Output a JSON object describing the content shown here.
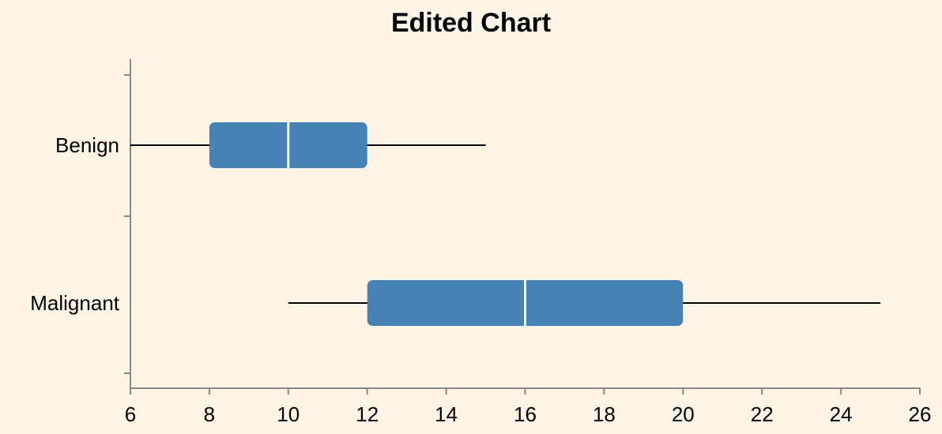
{
  "chart_data": {
    "type": "boxplot",
    "orientation": "horizontal",
    "title": "Edited Chart",
    "xlabel": "",
    "ylabel": "",
    "xlim": [
      6,
      26
    ],
    "x_ticks": [
      6,
      8,
      10,
      12,
      14,
      16,
      18,
      20,
      22,
      24,
      26
    ],
    "categories": [
      "Benign",
      "Malignant"
    ],
    "boxes": [
      {
        "category": "Benign",
        "min": 6,
        "q1": 8,
        "median": 10,
        "q3": 12,
        "max": 15
      },
      {
        "category": "Malignant",
        "min": 10,
        "q1": 12,
        "median": 16,
        "q3": 20,
        "max": 25
      }
    ],
    "grid": false,
    "colors": {
      "box_fill": "#4682b4",
      "median_line": "#ffffff",
      "whisker": "#000000",
      "axis": "#888888",
      "background": "#fdf4e6"
    }
  }
}
